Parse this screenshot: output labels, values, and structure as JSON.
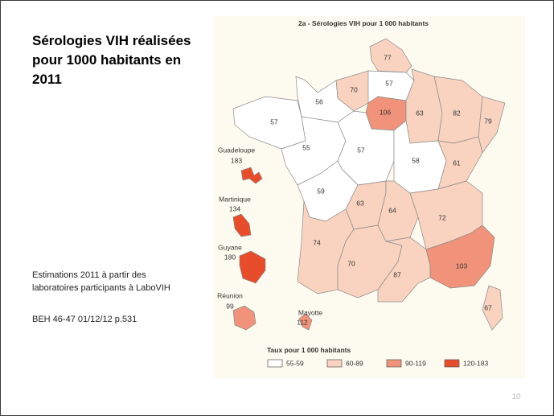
{
  "title_lines": [
    "Sérologies VIH réalisées",
    "pour 1000 habitants en",
    "2011"
  ],
  "note_lines": [
    "Estimations 2011 à partir des",
    "laboratoires participants à  LaboVIH"
  ],
  "source": "BEH 46-47  01/12/12 p.531",
  "page_number": "10",
  "map": {
    "title": "2a - Sérologies VIH pour 1 000 habitants",
    "legend_title": "Taux pour 1 000 habitants",
    "classes": [
      {
        "label": "55-59",
        "min": 55,
        "max": 59,
        "color": "#ffffff"
      },
      {
        "label": "60-89",
        "min": 60,
        "max": 89,
        "color": "#f9d3bf"
      },
      {
        "label": "90-119",
        "min": 90,
        "max": 119,
        "color": "#f0937a"
      },
      {
        "label": "120-183",
        "min": 120,
        "max": 183,
        "color": "#e84d2b"
      }
    ],
    "regions": [
      77,
      70,
      57,
      56,
      57,
      106,
      63,
      82,
      79,
      55,
      57,
      58,
      61,
      59,
      63,
      64,
      72,
      74,
      70,
      87,
      103,
      67
    ],
    "overseas": [
      {
        "name": "Guadeloupe",
        "value": 183
      },
      {
        "name": "Martinique",
        "value": 134
      },
      {
        "name": "Guyane",
        "value": 180
      },
      {
        "name": "Réunion",
        "value": 99
      },
      {
        "name": "Mayotte",
        "value": 112
      }
    ]
  }
}
